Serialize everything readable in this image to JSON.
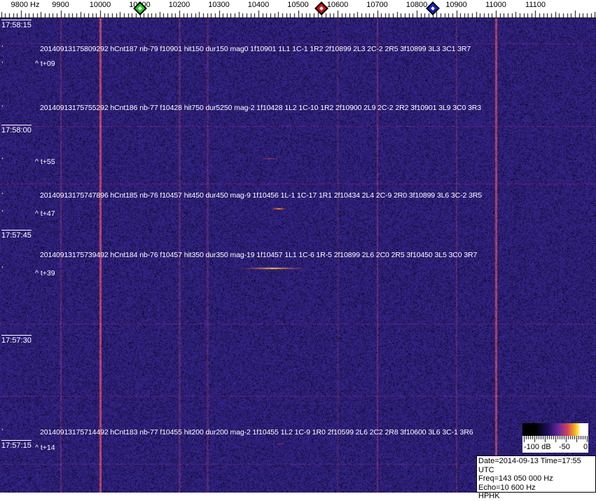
{
  "frequency_axis": {
    "labels": [
      "9800 Hz",
      "9900",
      "10000",
      "10100",
      "10200",
      "10300",
      "10400",
      "10500",
      "10600",
      "10700",
      "10800",
      "10900",
      "11000",
      "11100"
    ],
    "values": [
      9800,
      9900,
      10000,
      10100,
      10200,
      10300,
      10400,
      10500,
      10600,
      10700,
      10800,
      10900,
      11000,
      11100
    ],
    "markers": [
      {
        "name": "green",
        "freq": 10100,
        "color": "#22cc22"
      },
      {
        "name": "red",
        "freq": 10560,
        "color": "#cc1111"
      },
      {
        "name": "blue",
        "freq": 10840,
        "color": "#1122cc"
      }
    ]
  },
  "time_labels": [
    "17:58:15",
    "17:58:00",
    "17:57:45",
    "17:57:30",
    "17:57:15"
  ],
  "events": [
    {
      "text": "20140913175809292 hCnt187 nb-79 f10901 hit150 dur150 mag0 1f10901 1L1 1C-1 1R2 2f10899 2L3 2C-2 2R5 3f10899 3L3 3C1 3R7",
      "tplus": "^ t+09"
    },
    {
      "text": "20140913175755292 hCnt186 nb-77 f10428 hit750 dur5250 mag-2 1f10428 1L2 1C-10 1R2 2f10900 2L9 2C-2 2R2 3f10901 3L9 3C0 3R3",
      "tplus": "^ t+55"
    },
    {
      "text": "20140913175747896 hCnt185 nb-76 f10457 hit450 dur450 mag-9 1f10456 1L-1 1C-17 1R1 2f10434 2L4 2C-9 2R0 3f10899 3L6 3C-2 3R5",
      "tplus": "^ t+47"
    },
    {
      "text": "20140913175739492 hCnt184 nb-76 f10457 hit350 dur350 mag-19 1f10457 1L1 1C-6 1R-5 2f10899 2L6 2C0 2R5 3f10450 3L5 3C0 3R7",
      "tplus": "^ t+39"
    },
    {
      "text": "20140913175714492 hCnt183 nb-77 f10455 hit200 dur200 mag-2 1f10455 1L2 1C-9 1R0 2f10599 2L6 2C2 2R8 3f10600 3L6 3C-1 3R6",
      "tplus": "^ t+14"
    }
  ],
  "colorbar": {
    "labels": [
      "-100 dB",
      "-50",
      "0"
    ]
  },
  "info": {
    "date_time": "Date=2014-09-13 Time=17:55 UTC",
    "freq": "Freq=143 050 000 Hz",
    "echo": "Echo=10 600 Hz",
    "station": "HPHK"
  },
  "colors": {
    "background": "#2a2272",
    "carrier": "#e07a40",
    "meteor": "#ffd040"
  }
}
